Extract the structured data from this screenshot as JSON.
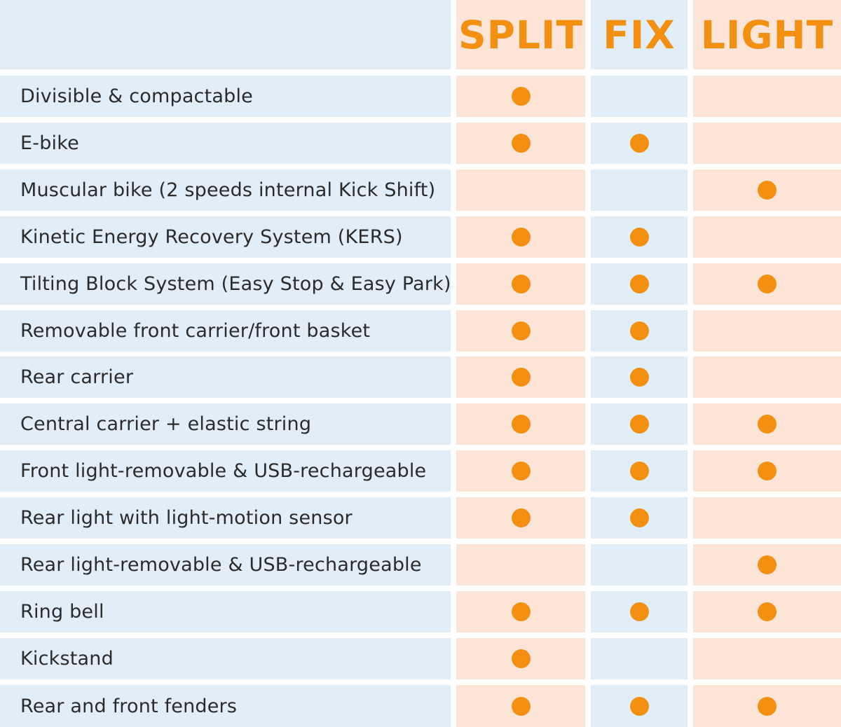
{
  "header": {
    "columns": [
      "SPLIT",
      "FIX",
      "LIGHT"
    ]
  },
  "colors": {
    "accent": "#f39012",
    "blue_cell": "#e1edf7",
    "pink_cell": "#fce4d7"
  },
  "rows": [
    {
      "feature": "Divisible & compactable",
      "marks": [
        true,
        false,
        false
      ]
    },
    {
      "feature": "E-bike",
      "marks": [
        true,
        true,
        false
      ]
    },
    {
      "feature": "Muscular bike (2 speeds internal Kick Shift)",
      "marks": [
        false,
        false,
        true
      ]
    },
    {
      "feature": "Kinetic Energy Recovery System (KERS)",
      "marks": [
        true,
        true,
        false
      ]
    },
    {
      "feature": "Tilting Block System (Easy Stop & Easy Park)",
      "marks": [
        true,
        true,
        true
      ]
    },
    {
      "feature": "Removable front carrier/front basket",
      "marks": [
        true,
        true,
        false
      ]
    },
    {
      "feature": "Rear carrier",
      "marks": [
        true,
        true,
        false
      ]
    },
    {
      "feature": "Central carrier + elastic string",
      "marks": [
        true,
        true,
        true
      ]
    },
    {
      "feature": "Front light-removable & USB-rechargeable",
      "marks": [
        true,
        true,
        true
      ]
    },
    {
      "feature": "Rear light with light-motion sensor",
      "marks": [
        true,
        true,
        false
      ]
    },
    {
      "feature": "Rear light-removable & USB-rechargeable",
      "marks": [
        false,
        false,
        true
      ]
    },
    {
      "feature": "Ring bell",
      "marks": [
        true,
        true,
        true
      ]
    },
    {
      "feature": "Kickstand",
      "marks": [
        true,
        false,
        false
      ]
    },
    {
      "feature": "Rear and front fenders",
      "marks": [
        true,
        true,
        true
      ]
    }
  ]
}
